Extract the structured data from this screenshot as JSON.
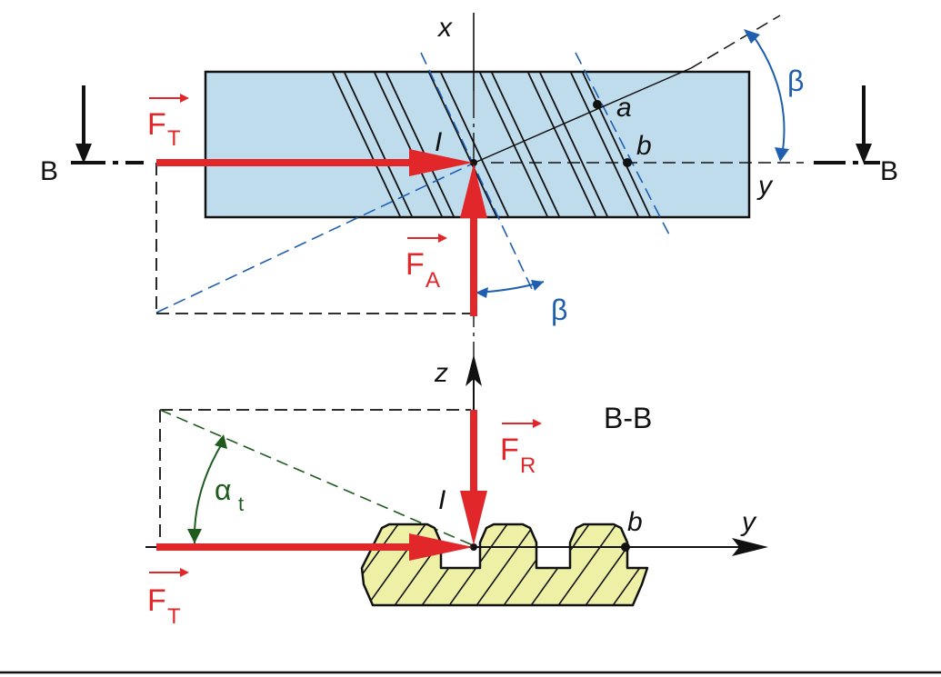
{
  "labels": {
    "section_left": "B",
    "section_right": "B",
    "section_view_title": "B-B",
    "axis_x": "x",
    "axis_y_top": "y",
    "axis_z": "z",
    "axis_y_bottom": "y",
    "point_I_top": "I",
    "point_I_bottom": "I",
    "point_a": "a",
    "point_b_top": "b",
    "point_b_bottom": "b",
    "beta_top": "β",
    "beta_bottom": "β",
    "alpha_sym": "α",
    "alpha_sub": "t"
  },
  "forces": {
    "ft_top": {
      "symbol": "F",
      "sub": "T"
    },
    "fa": {
      "symbol": "F",
      "sub": "A"
    },
    "fr": {
      "symbol": "F",
      "sub": "R"
    },
    "ft_bottom": {
      "symbol": "F",
      "sub": "T"
    }
  },
  "colors": {
    "force": "#e2272a",
    "helix": "#1f5fb0",
    "alpha": "#1f5a1f",
    "rack_fill": "#eef0a6",
    "block_fill": "#bfdcec",
    "line": "#111111"
  }
}
